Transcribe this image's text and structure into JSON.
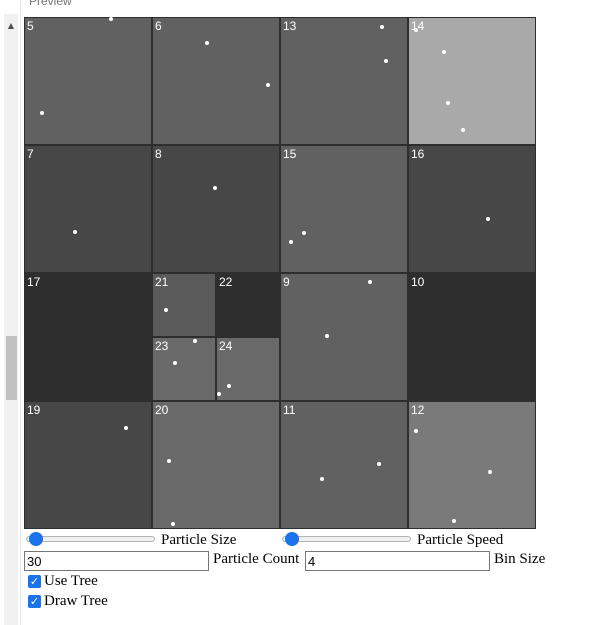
{
  "header": {
    "title": "Preview"
  },
  "grid": {
    "cells": [
      {
        "num": "5",
        "color": "#616161"
      },
      {
        "num": "6",
        "color": "#616161"
      },
      {
        "num": "13",
        "color": "#616161"
      },
      {
        "num": "14",
        "color": "#a9a9a9"
      },
      {
        "num": "7",
        "color": "#474747"
      },
      {
        "num": "8",
        "color": "#474747"
      },
      {
        "num": "15",
        "color": "#616161"
      },
      {
        "num": "16",
        "color": "#474747"
      },
      {
        "num": "17",
        "color": "#2e2e2e"
      },
      {
        "num": "21",
        "color": "#5a5a5a"
      },
      {
        "num": "22",
        "color": "#2e2e2e"
      },
      {
        "num": "23",
        "color": "#6a6a6a"
      },
      {
        "num": "24",
        "color": "#6a6a6a"
      },
      {
        "num": "9",
        "color": "#616161"
      },
      {
        "num": "10",
        "color": "#2e2e2e"
      },
      {
        "num": "19",
        "color": "#474747"
      },
      {
        "num": "20",
        "color": "#6a6a6a"
      },
      {
        "num": "11",
        "color": "#616161"
      },
      {
        "num": "12",
        "color": "#7a7a7a"
      }
    ]
  },
  "controls": {
    "particle_size_label": "Particle Size",
    "particle_size_value": 0,
    "particle_speed_label": "Particle Speed",
    "particle_speed_value": 0,
    "particle_count_label": "Particle Count",
    "particle_count_value": "30",
    "bin_size_label": "Bin Size",
    "bin_size_value": "4",
    "use_tree_label": "Use Tree",
    "use_tree_checked": true,
    "draw_tree_label": "Draw Tree",
    "draw_tree_checked": true
  },
  "colors": {
    "accent": "#1a73e8",
    "particle": "#ffffff"
  },
  "icons": {
    "scroll_up": "triangle-up-icon"
  }
}
